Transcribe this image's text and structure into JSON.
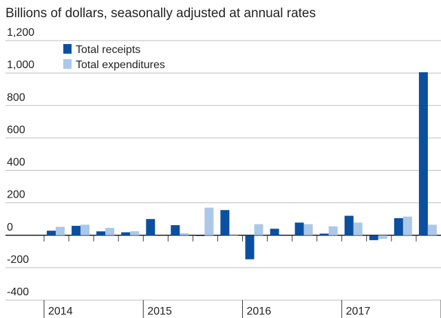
{
  "chart_data": {
    "type": "bar",
    "title": "Billions of dollars, seasonally adjusted at annual rates",
    "xlabel": "",
    "ylabel": "",
    "ylim": [
      -400,
      1200
    ],
    "y_ticks": [
      1200,
      1000,
      800,
      600,
      400,
      200,
      0,
      -200,
      -400
    ],
    "y_tick_labels": [
      "1,200",
      "1,000",
      "800",
      "600",
      "400",
      "200",
      "0",
      "-200",
      "-400"
    ],
    "grid": true,
    "legend_position": "top-left",
    "years": [
      "2014",
      "2015",
      "2016",
      "2017"
    ],
    "categories": [
      "2014 Q1",
      "2014 Q2",
      "2014 Q3",
      "2014 Q4",
      "2015 Q1",
      "2015 Q2",
      "2015 Q3",
      "2015 Q4",
      "2016 Q1",
      "2016 Q2",
      "2016 Q3",
      "2016 Q4",
      "2017 Q1",
      "2017 Q2",
      "2017 Q3",
      "2017 Q4"
    ],
    "series": [
      {
        "name": "Total receipts",
        "color": "#0b4fa0",
        "values": [
          28,
          58,
          24,
          18,
          100,
          62,
          -5,
          155,
          -148,
          40,
          78,
          10,
          120,
          -30,
          105,
          1005
        ]
      },
      {
        "name": "Total expenditures",
        "color": "#abc8e8",
        "values": [
          52,
          65,
          45,
          25,
          0,
          12,
          170,
          -3,
          68,
          0,
          68,
          55,
          78,
          -22,
          115,
          65
        ]
      }
    ]
  }
}
